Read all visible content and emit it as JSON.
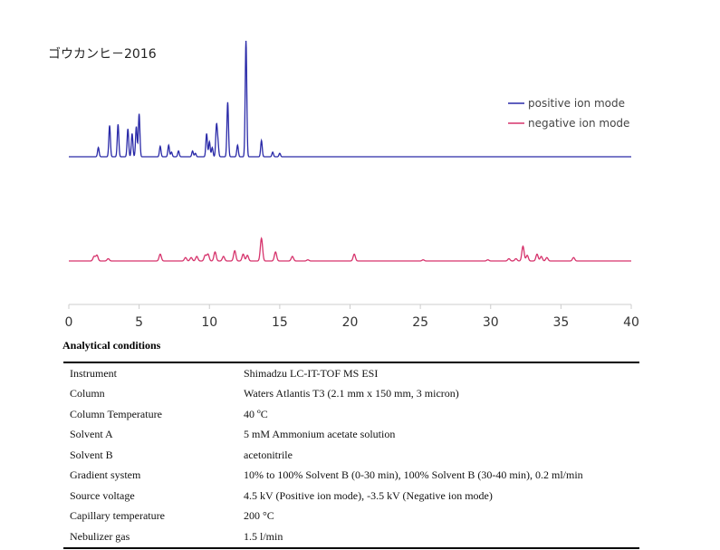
{
  "chart_data": {
    "type": "line",
    "title": "ゴウカンヒ－2016",
    "xlim": [
      0,
      40
    ],
    "x_ticks": [
      "0",
      "5",
      "10",
      "15",
      "20",
      "25",
      "30",
      "35",
      "40"
    ],
    "x_tick_values": [
      0,
      5,
      10,
      15,
      20,
      25,
      30,
      35,
      40
    ],
    "legend_position": "top-right",
    "series": [
      {
        "name": "positive ion mode",
        "color": "#2a2aa8",
        "peaks": [
          [
            2.1,
            0.08
          ],
          [
            2.9,
            0.27
          ],
          [
            3.5,
            0.28
          ],
          [
            4.2,
            0.24
          ],
          [
            4.5,
            0.2
          ],
          [
            4.8,
            0.26
          ],
          [
            5.0,
            0.37
          ],
          [
            6.5,
            0.09
          ],
          [
            7.1,
            0.1
          ],
          [
            7.3,
            0.04
          ],
          [
            7.8,
            0.05
          ],
          [
            8.8,
            0.05
          ],
          [
            9.0,
            0.03
          ],
          [
            9.8,
            0.2
          ],
          [
            10.0,
            0.13
          ],
          [
            10.2,
            0.08
          ],
          [
            10.5,
            0.26
          ],
          [
            10.6,
            0.12
          ],
          [
            11.3,
            0.47
          ],
          [
            12.0,
            0.1
          ],
          [
            12.6,
            1.0
          ],
          [
            13.7,
            0.14
          ],
          [
            14.5,
            0.04
          ],
          [
            15.0,
            0.03
          ]
        ]
      },
      {
        "name": "negative ion mode",
        "color": "#d6336c",
        "peaks": [
          [
            1.8,
            0.04
          ],
          [
            2.0,
            0.05
          ],
          [
            2.8,
            0.02
          ],
          [
            6.5,
            0.06
          ],
          [
            8.3,
            0.03
          ],
          [
            8.7,
            0.03
          ],
          [
            9.1,
            0.04
          ],
          [
            9.7,
            0.05
          ],
          [
            9.9,
            0.06
          ],
          [
            10.4,
            0.08
          ],
          [
            11.0,
            0.04
          ],
          [
            11.8,
            0.09
          ],
          [
            12.4,
            0.06
          ],
          [
            12.7,
            0.05
          ],
          [
            13.7,
            0.2
          ],
          [
            14.7,
            0.08
          ],
          [
            15.9,
            0.04
          ],
          [
            17.0,
            0.01
          ],
          [
            20.3,
            0.06
          ],
          [
            25.2,
            0.01
          ],
          [
            29.8,
            0.01
          ],
          [
            31.3,
            0.02
          ],
          [
            31.8,
            0.02
          ],
          [
            32.3,
            0.13
          ],
          [
            32.6,
            0.05
          ],
          [
            33.3,
            0.06
          ],
          [
            33.6,
            0.04
          ],
          [
            34.0,
            0.03
          ],
          [
            35.9,
            0.03
          ]
        ]
      }
    ]
  },
  "conditions": {
    "heading": "Analytical conditions",
    "rows": [
      {
        "key": "Instrument",
        "value": "Shimadzu LC-IT-TOF MS ESI"
      },
      {
        "key": "Column",
        "value": "Waters Atlantis T3 (2.1 mm x 150 mm, 3 micron)"
      },
      {
        "key": "Column Temperature",
        "value": "40 ºC"
      },
      {
        "key": "Solvent A",
        "value": "5 mM Ammonium acetate solution"
      },
      {
        "key": "Solvent B",
        "value": "acetonitrile"
      },
      {
        "key": "Gradient system",
        "value": "10% to 100% Solvent B (0-30 min), 100% Solvent B (30-40 min), 0.2 ml/min"
      },
      {
        "key": "Source voltage",
        "value": "4.5 kV (Positive ion mode), -3.5 kV (Negative ion mode)"
      },
      {
        "key": "Capillary temperature",
        "value": "200 °C"
      },
      {
        "key": "Nebulizer gas",
        "value": "1.5 l/min"
      }
    ]
  }
}
